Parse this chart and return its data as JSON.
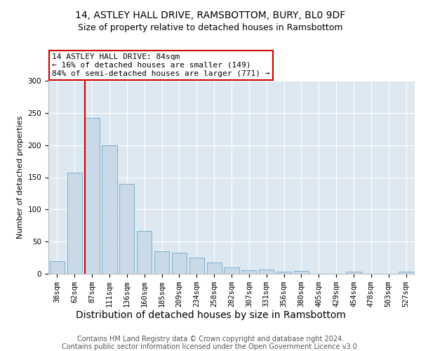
{
  "title1": "14, ASTLEY HALL DRIVE, RAMSBOTTOM, BURY, BL0 9DF",
  "title2": "Size of property relative to detached houses in Ramsbottom",
  "xlabel": "Distribution of detached houses by size in Ramsbottom",
  "ylabel": "Number of detached properties",
  "categories": [
    "38sqm",
    "62sqm",
    "87sqm",
    "111sqm",
    "136sqm",
    "160sqm",
    "185sqm",
    "209sqm",
    "234sqm",
    "258sqm",
    "282sqm",
    "307sqm",
    "331sqm",
    "356sqm",
    "380sqm",
    "405sqm",
    "429sqm",
    "454sqm",
    "478sqm",
    "503sqm",
    "527sqm"
  ],
  "values": [
    20,
    157,
    242,
    200,
    140,
    67,
    35,
    33,
    25,
    17,
    10,
    6,
    7,
    3,
    4,
    0,
    0,
    3,
    0,
    0,
    3
  ],
  "bar_color": "#c9d9e8",
  "bar_edge_color": "#7bafd4",
  "vline_bar_index": 2,
  "vline_color": "#cc0000",
  "annotation_box_text": "14 ASTLEY HALL DRIVE: 84sqm\n← 16% of detached houses are smaller (149)\n84% of semi-detached houses are larger (771) →",
  "annotation_box_color": "#cc0000",
  "background_color": "#dde8f0",
  "ylim": [
    0,
    300
  ],
  "footer1": "Contains HM Land Registry data © Crown copyright and database right 2024.",
  "footer2": "Contains public sector information licensed under the Open Government Licence v3.0.",
  "title1_fontsize": 10,
  "title2_fontsize": 9,
  "xlabel_fontsize": 10,
  "ylabel_fontsize": 8,
  "tick_fontsize": 7.5,
  "ann_fontsize": 8,
  "footer_fontsize": 7
}
